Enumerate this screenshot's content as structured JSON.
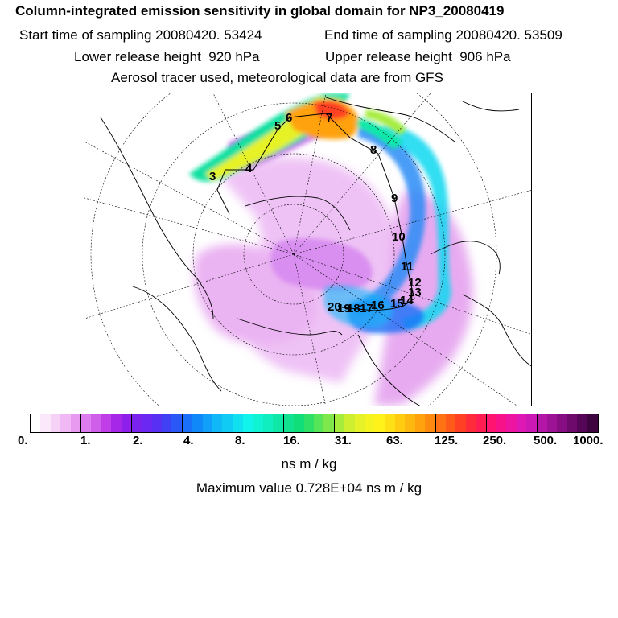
{
  "header": {
    "title": "Column-integrated emission sensitivity in global domain for NP3_20080419",
    "start_time": "Start time of sampling 20080420. 53424",
    "end_time": "End time of sampling 20080420. 53509",
    "lower_release": "Lower release height  920 hPa",
    "upper_release": "Upper release height  906 hPa",
    "tracer_note": "Aerosol tracer used, meteorological data are from GFS"
  },
  "map": {
    "projection": "north-polar-stereographic",
    "trajectory_day_labels": [
      "3",
      "4",
      "5",
      "6",
      "7",
      "8",
      "9",
      "10",
      "11",
      "12",
      "13",
      "14",
      "15",
      "16",
      "17",
      "18",
      "19",
      "20"
    ]
  },
  "colorbar": {
    "colors": [
      "#ffffff",
      "#fbe8fb",
      "#f6d2f6",
      "#f0b8f4",
      "#e89af0",
      "#dd7cee",
      "#cf5eea",
      "#bf3ee8",
      "#a727e8",
      "#8f1fea",
      "#7a22ee",
      "#6a28f2",
      "#5830f4",
      "#4040f4",
      "#2a58f6",
      "#1a70f8",
      "#1088fa",
      "#10a0fa",
      "#10b8f8",
      "#10ccf4",
      "#10e0f0",
      "#10f4ec",
      "#10f4d4",
      "#10eec0",
      "#10e8a8",
      "#10e290",
      "#10de78",
      "#2ee066",
      "#56e458",
      "#7ee84a",
      "#a6ec3c",
      "#ceef30",
      "#e6f228",
      "#f6f420",
      "#fff21a",
      "#ffe016",
      "#ffcc12",
      "#ffb810",
      "#ffa20e",
      "#ff8a10",
      "#ff7214",
      "#ff5a1a",
      "#ff4024",
      "#ff2a3a",
      "#ff1c52",
      "#ff1470",
      "#f8128a",
      "#ec14a0",
      "#de18b4",
      "#cc18b4",
      "#b616a8",
      "#9e1296",
      "#860e82",
      "#6e0a6c",
      "#560656",
      "#3e0440"
    ],
    "tick_labels": [
      "0.",
      "1.",
      "2.",
      "4.",
      "8.",
      "16.",
      "31.",
      "63.",
      "125.",
      "250.",
      "500.",
      "1000."
    ]
  },
  "units_label": "ns m / kg",
  "max_value_label": "Maximum value  0.728E+04 ns m / kg"
}
